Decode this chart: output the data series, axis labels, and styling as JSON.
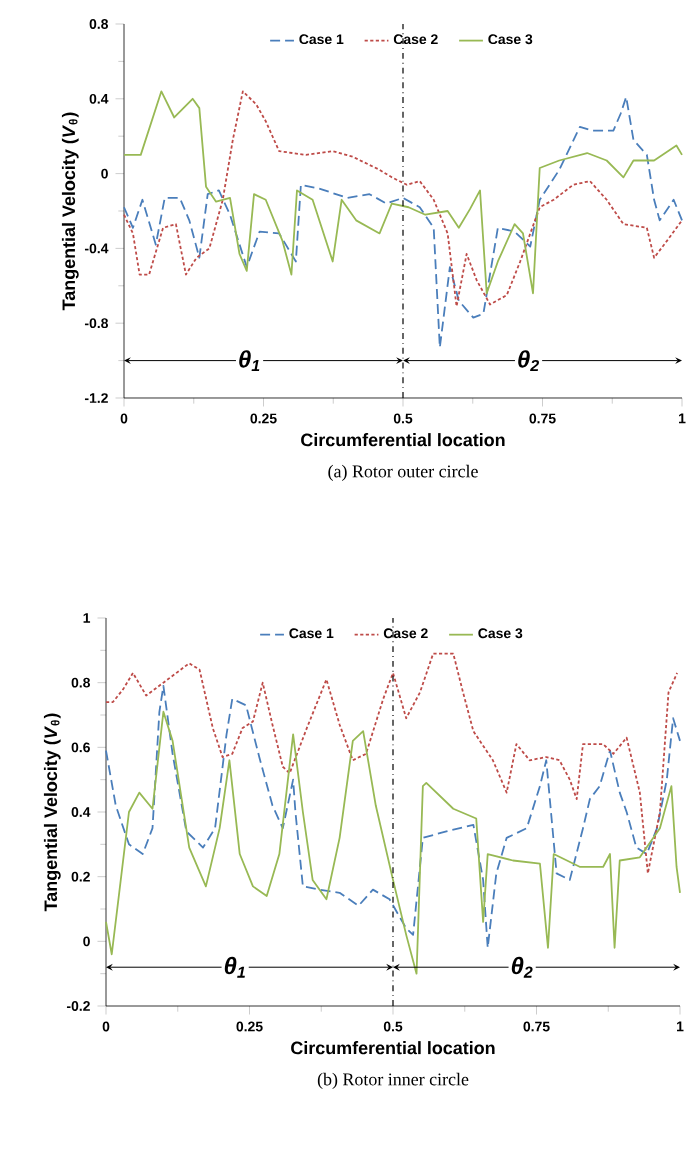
{
  "chart_data": [
    {
      "type": "line",
      "title": "(a)  Rotor outer circle",
      "xlabel": "Circumferential location",
      "ylabel": "Tangential Velocity (*V*$_{θ}$)",
      "xlim": [
        0,
        1
      ],
      "xticks": [
        0,
        0.25,
        0.5,
        0.75,
        1
      ],
      "ylim": [
        -1.2,
        0.8
      ],
      "yticks": [
        -1.2,
        -0.8,
        -0.4,
        0,
        0.4,
        0.8
      ],
      "legend": "top",
      "ref_lines": [
        {
          "axis": "x",
          "value": 0.5,
          "line_style": "dashdot"
        }
      ],
      "annotations": [
        "θ$_{1}$",
        "θ$_{2}$"
      ],
      "series": [
        {
          "name": "Case 1",
          "color": "#4a7ebb",
          "line_style": "dashed",
          "x": [
            0,
            0.016,
            0.033,
            0.057,
            0.073,
            0.1,
            0.117,
            0.135,
            0.15,
            0.17,
            0.19,
            0.22,
            0.243,
            0.278,
            0.308,
            0.317,
            0.35,
            0.4,
            0.44,
            0.47,
            0.5,
            0.53,
            0.555,
            0.566,
            0.584,
            0.6,
            0.626,
            0.644,
            0.67,
            0.7,
            0.728,
            0.745,
            0.78,
            0.817,
            0.84,
            0.877,
            0.89,
            0.9,
            0.913,
            0.937,
            0.95,
            0.96,
            0.985,
            1
          ],
          "values": [
            -0.18,
            -0.29,
            -0.14,
            -0.38,
            -0.13,
            -0.13,
            -0.25,
            -0.45,
            -0.11,
            -0.09,
            -0.22,
            -0.5,
            -0.31,
            -0.32,
            -0.47,
            -0.06,
            -0.08,
            -0.13,
            -0.11,
            -0.16,
            -0.13,
            -0.18,
            -0.29,
            -0.93,
            -0.5,
            -0.68,
            -0.77,
            -0.75,
            -0.29,
            -0.31,
            -0.39,
            -0.14,
            0.02,
            0.25,
            0.23,
            0.23,
            0.32,
            0.41,
            0.18,
            0.1,
            -0.14,
            -0.25,
            -0.14,
            -0.25
          ]
        },
        {
          "name": "Case 2",
          "color": "#be4b48",
          "line_style": "dotted",
          "x": [
            0,
            0.016,
            0.028,
            0.045,
            0.07,
            0.093,
            0.111,
            0.13,
            0.153,
            0.177,
            0.195,
            0.213,
            0.237,
            0.254,
            0.278,
            0.326,
            0.374,
            0.41,
            0.458,
            0.48,
            0.507,
            0.53,
            0.555,
            0.58,
            0.596,
            0.614,
            0.632,
            0.656,
            0.686,
            0.71,
            0.745,
            0.77,
            0.805,
            0.835,
            0.865,
            0.895,
            0.937,
            0.95,
            0.973,
            1
          ],
          "values": [
            -0.22,
            -0.32,
            -0.54,
            -0.54,
            -0.29,
            -0.27,
            -0.54,
            -0.45,
            -0.4,
            -0.14,
            0.18,
            0.44,
            0.37,
            0.28,
            0.12,
            0.1,
            0.12,
            0.09,
            0.02,
            -0.02,
            -0.06,
            -0.04,
            -0.14,
            -0.32,
            -0.71,
            -0.43,
            -0.57,
            -0.7,
            -0.65,
            -0.47,
            -0.18,
            -0.14,
            -0.06,
            -0.04,
            -0.14,
            -0.27,
            -0.29,
            -0.45,
            -0.36,
            -0.25
          ]
        },
        {
          "name": "Case 3",
          "color": "#98b954",
          "line_style": "solid",
          "x": [
            0,
            0.03,
            0.067,
            0.09,
            0.123,
            0.135,
            0.147,
            0.165,
            0.19,
            0.207,
            0.22,
            0.233,
            0.254,
            0.284,
            0.3,
            0.31,
            0.338,
            0.374,
            0.39,
            0.416,
            0.458,
            0.48,
            0.51,
            0.54,
            0.58,
            0.6,
            0.62,
            0.638,
            0.65,
            0.67,
            0.7,
            0.715,
            0.733,
            0.745,
            0.78,
            0.83,
            0.865,
            0.895,
            0.913,
            0.95,
            0.99,
            1
          ],
          "values": [
            0.1,
            0.1,
            0.44,
            0.3,
            0.4,
            0.35,
            -0.07,
            -0.15,
            -0.13,
            -0.43,
            -0.52,
            -0.11,
            -0.14,
            -0.36,
            -0.54,
            -0.09,
            -0.14,
            -0.47,
            -0.14,
            -0.25,
            -0.32,
            -0.16,
            -0.18,
            -0.22,
            -0.2,
            -0.29,
            -0.19,
            -0.09,
            -0.64,
            -0.47,
            -0.27,
            -0.32,
            -0.64,
            0.03,
            0.07,
            0.11,
            0.07,
            -0.02,
            0.07,
            0.07,
            0.15,
            0.1
          ]
        }
      ]
    },
    {
      "type": "line",
      "title": "(b)  Rotor inner circle",
      "xlabel": "Circumferential location",
      "ylabel": "Tangential Velocity (*V*$_{θ}$)",
      "xlim": [
        0,
        1
      ],
      "xticks": [
        0,
        0.25,
        0.5,
        0.75,
        1
      ],
      "ylim": [
        -0.2,
        1
      ],
      "yticks": [
        -0.2,
        0,
        0.2,
        0.4,
        0.6,
        0.8,
        1
      ],
      "legend": "top",
      "ref_lines": [
        {
          "axis": "x",
          "value": 0.5,
          "line_style": "dashdot"
        }
      ],
      "annotations": [
        "θ$_{1}$",
        "θ$_{2}$"
      ],
      "series": [
        {
          "name": "Case 1",
          "color": "#4a7ebb",
          "line_style": "dashed",
          "x": [
            0,
            0.017,
            0.04,
            0.064,
            0.081,
            0.093,
            0.1,
            0.116,
            0.14,
            0.169,
            0.19,
            0.21,
            0.22,
            0.244,
            0.267,
            0.29,
            0.308,
            0.326,
            0.33,
            0.343,
            0.372,
            0.407,
            0.44,
            0.465,
            0.494,
            0.523,
            0.535,
            0.552,
            0.593,
            0.64,
            0.657,
            0.665,
            0.68,
            0.698,
            0.733,
            0.756,
            0.767,
            0.785,
            0.808,
            0.831,
            0.843,
            0.86,
            0.878,
            0.895,
            0.907,
            0.924,
            0.942,
            0.96,
            0.977,
            0.988,
            1
          ],
          "values": [
            0.59,
            0.42,
            0.3,
            0.27,
            0.35,
            0.71,
            0.79,
            0.58,
            0.34,
            0.29,
            0.35,
            0.64,
            0.75,
            0.73,
            0.57,
            0.42,
            0.35,
            0.5,
            0.4,
            0.17,
            0.16,
            0.15,
            0.11,
            0.16,
            0.13,
            0.04,
            0.02,
            0.32,
            0.34,
            0.36,
            0.19,
            -0.02,
            0.21,
            0.32,
            0.35,
            0.48,
            0.56,
            0.21,
            0.19,
            0.35,
            0.44,
            0.48,
            0.59,
            0.46,
            0.4,
            0.29,
            0.27,
            0.35,
            0.5,
            0.69,
            0.62
          ]
        },
        {
          "name": "Case 2",
          "color": "#be4b48",
          "line_style": "dotted",
          "x": [
            0,
            0.012,
            0.03,
            0.047,
            0.07,
            0.1,
            0.145,
            0.163,
            0.186,
            0.203,
            0.22,
            0.238,
            0.256,
            0.273,
            0.29,
            0.308,
            0.32,
            0.35,
            0.384,
            0.407,
            0.43,
            0.453,
            0.483,
            0.5,
            0.523,
            0.547,
            0.57,
            0.605,
            0.622,
            0.64,
            0.674,
            0.698,
            0.715,
            0.738,
            0.767,
            0.79,
            0.808,
            0.82,
            0.831,
            0.866,
            0.884,
            0.907,
            0.93,
            0.944,
            0.965,
            0.98,
            0.995
          ],
          "values": [
            0.74,
            0.74,
            0.78,
            0.83,
            0.76,
            0.8,
            0.86,
            0.84,
            0.66,
            0.57,
            0.58,
            0.66,
            0.68,
            0.8,
            0.67,
            0.54,
            0.52,
            0.66,
            0.81,
            0.67,
            0.56,
            0.58,
            0.75,
            0.83,
            0.69,
            0.77,
            0.89,
            0.89,
            0.77,
            0.65,
            0.56,
            0.46,
            0.61,
            0.56,
            0.57,
            0.56,
            0.5,
            0.44,
            0.61,
            0.61,
            0.58,
            0.63,
            0.46,
            0.21,
            0.4,
            0.77,
            0.83
          ]
        },
        {
          "name": "Case 3",
          "color": "#98b954",
          "line_style": "solid",
          "x": [
            0,
            0.01,
            0.023,
            0.04,
            0.058,
            0.081,
            0.1,
            0.116,
            0.145,
            0.174,
            0.198,
            0.215,
            0.233,
            0.256,
            0.28,
            0.302,
            0.326,
            0.343,
            0.36,
            0.384,
            0.407,
            0.43,
            0.448,
            0.47,
            0.5,
            0.523,
            0.541,
            0.552,
            0.558,
            0.605,
            0.645,
            0.657,
            0.665,
            0.709,
            0.756,
            0.77,
            0.78,
            0.826,
            0.866,
            0.878,
            0.886,
            0.895,
            0.93,
            0.965,
            0.985,
            0.994,
            1
          ],
          "values": [
            0.06,
            -0.04,
            0.15,
            0.4,
            0.46,
            0.41,
            0.71,
            0.62,
            0.29,
            0.17,
            0.35,
            0.56,
            0.27,
            0.17,
            0.14,
            0.27,
            0.64,
            0.4,
            0.19,
            0.13,
            0.32,
            0.62,
            0.65,
            0.42,
            0.19,
            0.02,
            -0.1,
            0.48,
            0.49,
            0.41,
            0.38,
            0.06,
            0.27,
            0.25,
            0.24,
            -0.02,
            0.27,
            0.23,
            0.23,
            0.27,
            -0.02,
            0.25,
            0.26,
            0.35,
            0.48,
            0.23,
            0.15
          ]
        }
      ]
    }
  ]
}
